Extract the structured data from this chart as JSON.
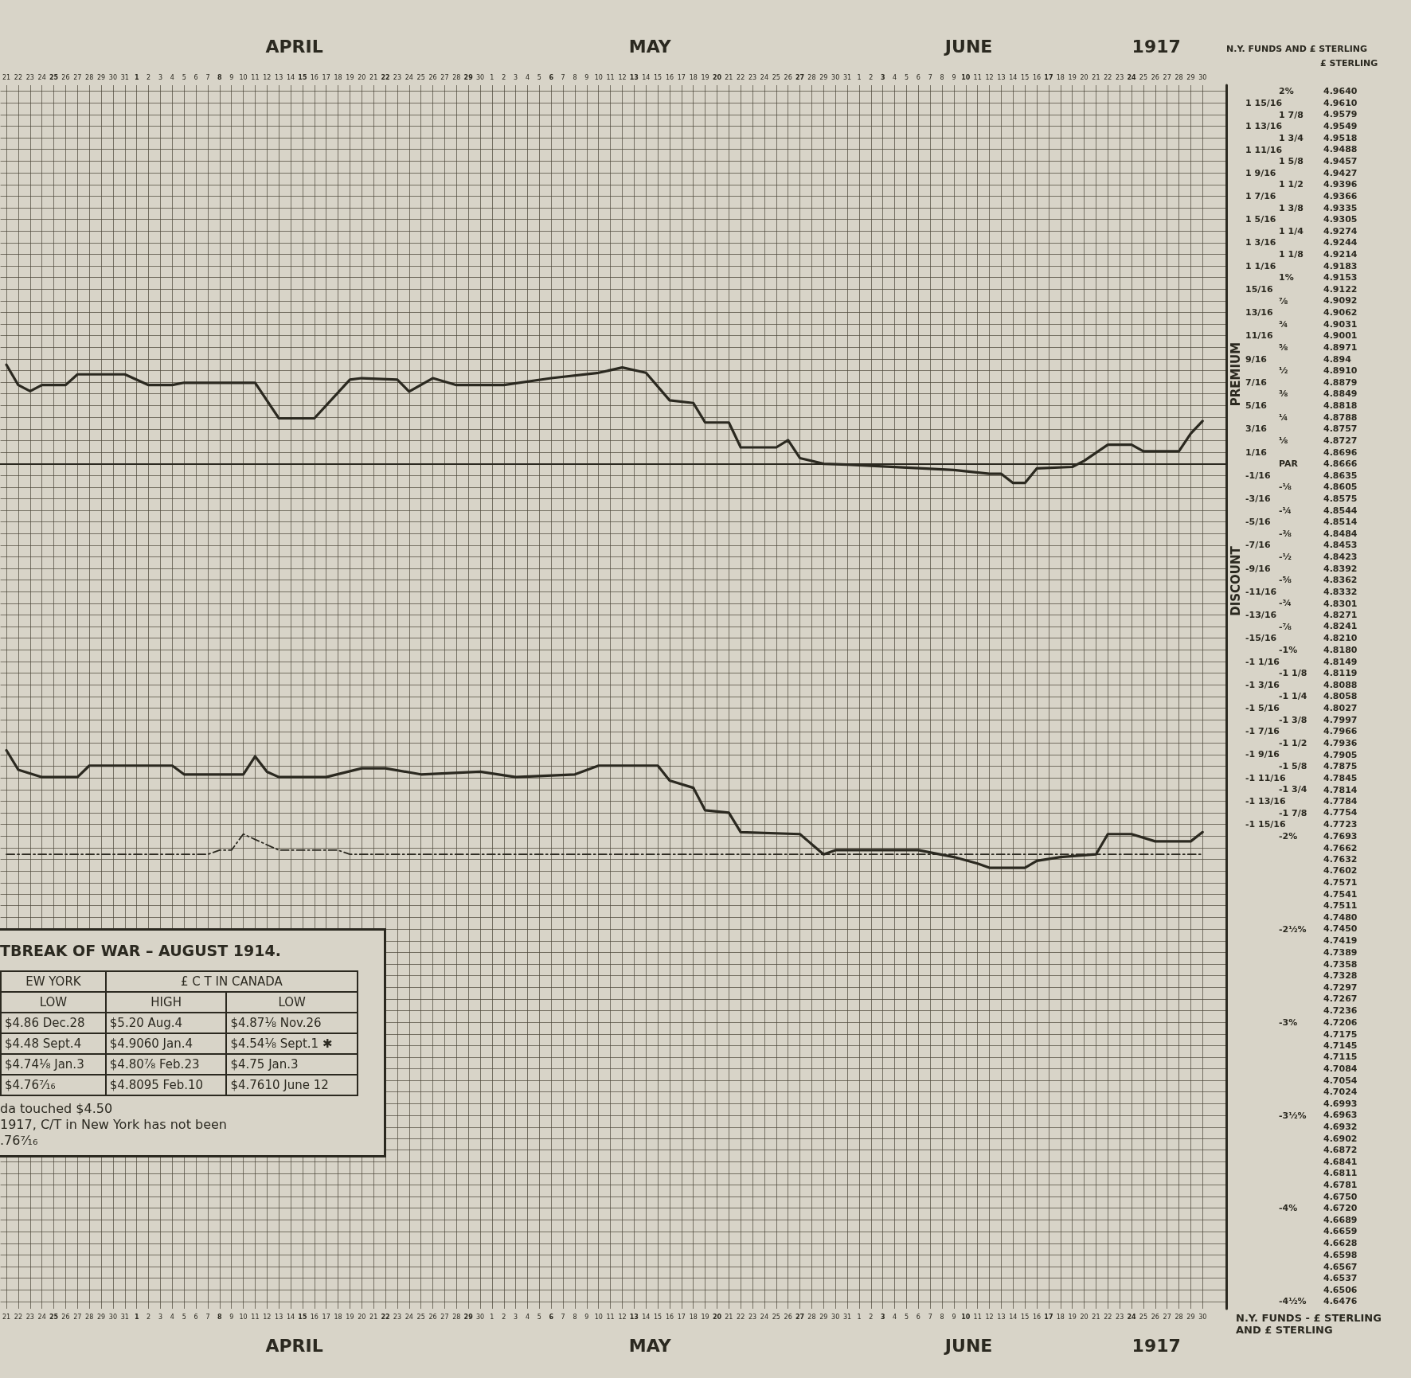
{
  "chart_data": {
    "type": "line",
    "ylabel": "£ STERLING",
    "y2label": "N.Y. FUNDS AND £ STERLING",
    "xlim": [
      "1917-03-20T12:00",
      "1917-07-02"
    ],
    "x2lim": [
      "1917-03-20T12:00",
      "1917-07-02"
    ],
    "ylim": [
      4.6457,
      4.9656
    ],
    "y2lim": [
      -4.539,
      2.034
    ],
    "y3lim": [
      -4.539,
      2.034
    ],
    "grid": true,
    "marker": "none",
    "series": [
      {
        "color": "#2b2920",
        "line_style": "solid",
        "x": [
          "1917-03-21",
          "1917-03-22",
          "1917-03-23",
          "1917-03-24",
          "1917-03-26",
          "1917-03-27",
          "1917-03-31",
          "1917-04-02",
          "1917-04-04",
          "1917-04-05",
          "1917-04-11",
          "1917-04-13",
          "1917-04-16",
          "1917-04-19",
          "1917-04-20",
          "1917-04-23",
          "1917-04-24",
          "1917-04-26",
          "1917-04-28",
          "1917-05-02",
          "1917-05-06",
          "1917-05-10",
          "1917-05-12",
          "1917-05-14",
          "1917-05-16",
          "1917-05-18",
          "1917-05-19",
          "1917-05-21",
          "1917-05-22",
          "1917-05-25",
          "1917-05-26",
          "1917-05-27",
          "1917-05-29",
          "1917-05-31",
          "1917-06-09",
          "1917-06-12",
          "1917-06-13",
          "1917-06-14",
          "1917-06-15",
          "1917-06-16",
          "1917-06-19",
          "1917-06-20",
          "1917-06-22",
          "1917-06-24",
          "1917-06-25",
          "1917-06-28",
          "1917-06-29",
          "1917-06-30"
        ],
        "values": [
          4.8925,
          4.8872,
          4.8856,
          4.8872,
          4.8872,
          4.89,
          4.89,
          4.8872,
          4.8872,
          4.8878,
          4.8878,
          4.8785,
          4.8785,
          4.8886,
          4.889,
          4.8886,
          4.8855,
          4.889,
          4.8872,
          4.8872,
          4.889,
          4.8904,
          4.8918,
          4.8904,
          4.8832,
          4.8825,
          4.8774,
          4.8774,
          4.8709,
          4.8709,
          4.8728,
          4.8681,
          4.8666,
          4.8664,
          4.865,
          4.864,
          4.864,
          4.8616,
          4.8616,
          4.8654,
          4.8658,
          4.8674,
          4.8716,
          4.8716,
          4.8699,
          4.8699,
          4.8745,
          4.8778
        ]
      },
      {
        "color": "#2b2920",
        "line_style": "solid",
        "x": [
          "1917-03-21",
          "1917-03-22",
          "1917-03-24",
          "1917-03-27",
          "1917-03-28",
          "1917-04-04",
          "1917-04-05",
          "1917-04-10",
          "1917-04-11",
          "1917-04-12",
          "1917-04-13",
          "1917-04-17",
          "1917-04-20",
          "1917-04-22",
          "1917-04-25",
          "1917-04-30",
          "1917-05-03",
          "1917-05-08",
          "1917-05-10",
          "1917-05-15",
          "1917-05-16",
          "1917-05-18",
          "1917-05-19",
          "1917-05-21",
          "1917-05-22",
          "1917-05-27",
          "1917-05-29",
          "1917-05-30",
          "1917-06-06",
          "1917-06-09",
          "1917-06-11",
          "1917-06-12",
          "1917-06-15",
          "1917-06-16",
          "1917-06-18",
          "1917-06-21",
          "1917-06-22",
          "1917-06-24",
          "1917-06-26",
          "1917-06-29",
          "1917-06-30"
        ],
        "values": [
          4.7917,
          4.7866,
          4.7847,
          4.7847,
          4.7877,
          4.7877,
          4.7854,
          4.7854,
          4.7901,
          4.7861,
          4.7847,
          4.7847,
          4.787,
          4.787,
          4.7854,
          4.7861,
          4.7847,
          4.7854,
          4.7877,
          4.7877,
          4.7838,
          4.7819,
          4.776,
          4.7754,
          4.7703,
          4.7698,
          4.7645,
          4.7656,
          4.7656,
          4.7638,
          4.7621,
          4.761,
          4.761,
          4.7628,
          4.7638,
          4.7645,
          4.7698,
          4.7698,
          4.7679,
          4.7679,
          4.7703
        ]
      },
      {
        "color": "#2b2920",
        "line_style": "dashed",
        "x": [
          "1917-03-21",
          "1917-04-07",
          "1917-04-08",
          "1917-04-09",
          "1917-04-10",
          "1917-04-13",
          "1917-04-18",
          "1917-04-19",
          "1917-06-30"
        ],
        "values": [
          4.7645,
          4.7645,
          4.7656,
          4.7656,
          4.7698,
          4.7656,
          4.7656,
          4.7645,
          4.7645
        ]
      }
    ],
    "yticks": [
      {
        "value": 4.964,
        "label": "4.9640"
      },
      {
        "value": 4.961,
        "label": "4.9610"
      },
      4.9579,
      4.9549,
      4.9518,
      4.9488,
      4.9457,
      4.9427,
      4.9396,
      4.9366,
      4.9335,
      4.9305,
      4.9274,
      4.9244,
      4.9214,
      4.9183,
      4.9153,
      4.9122,
      4.9092,
      4.9062,
      4.9031,
      4.9001,
      4.8971,
      4.894,
      {
        "value": 4.891,
        "label": "4.8910"
      },
      4.8879,
      4.8849,
      4.8818,
      4.8788,
      4.8757,
      4.8727,
      4.8696,
      4.8666,
      4.8635,
      4.8605,
      4.8575,
      4.8544,
      4.8514,
      4.8484,
      4.8453,
      4.8423,
      4.8392,
      4.8362,
      4.8332,
      4.8301,
      4.8271,
      4.8241,
      {
        "value": 4.821,
        "label": "4.8210"
      },
      {
        "value": 4.818,
        "label": "4.8180"
      },
      4.8149,
      4.8119,
      4.8088,
      4.8058,
      4.8027,
      4.7997,
      4.7966,
      4.7936,
      4.7905,
      4.7875,
      4.7845,
      4.7814,
      4.7784,
      4.7754,
      4.7723,
      4.7693,
      4.7662,
      4.7632,
      4.7602,
      4.7571,
      4.7541,
      4.7511,
      {
        "value": 4.748,
        "label": "4.7480"
      },
      {
        "value": 4.745,
        "label": "4.7450"
      },
      4.7419,
      4.7389,
      4.7358,
      4.7328,
      4.7297,
      4.7267,
      4.7236,
      4.7206,
      4.7175,
      4.7145,
      4.7115,
      4.7084,
      4.7054,
      4.7024,
      4.6993,
      4.6963,
      4.6932,
      4.6902,
      4.6872,
      4.6841,
      4.6811,
      4.6781,
      {
        "value": 4.675,
        "label": "4.6750"
      },
      {
        "value": 4.672,
        "label": "4.6720"
      },
      4.6689,
      4.6659,
      4.6628,
      4.6598,
      4.6567,
      4.6537,
      4.6506,
      4.6476
    ],
    "y2ticks": [
      {
        "value": 1.9375,
        "label": "1 15/16"
      },
      {
        "value": 1.8125,
        "label": "1 13/16"
      },
      {
        "value": 1.6875,
        "label": "1 11/16"
      },
      {
        "value": 1.5625,
        "label": "1 9/16"
      },
      {
        "value": 1.4375,
        "label": "1 7/16"
      },
      {
        "value": 1.3125,
        "label": "1 5/16"
      },
      {
        "value": 1.1875,
        "label": "1 3/16"
      },
      {
        "value": 1.0625,
        "label": "1 1/16"
      },
      {
        "value": 0.9375,
        "label": "15/16"
      },
      {
        "value": 0.8125,
        "label": "13/16"
      },
      {
        "value": 0.6875,
        "label": "11/16"
      },
      {
        "value": 0.5625,
        "label": "9/16"
      },
      {
        "value": 0.4375,
        "label": "7/16"
      },
      {
        "value": 0.3125,
        "label": "5/16"
      },
      {
        "value": 0.1875,
        "label": "3/16"
      },
      {
        "value": 0.0625,
        "label": "1/16"
      },
      {
        "value": -0.0625,
        "label": "-1/16"
      },
      {
        "value": -0.1875,
        "label": "-3/16"
      },
      {
        "value": -0.3125,
        "label": "-5/16"
      },
      {
        "value": -0.4375,
        "label": "-7/16"
      },
      {
        "value": -0.5625,
        "label": "-9/16"
      },
      {
        "value": -0.6875,
        "label": "-11/16"
      },
      {
        "value": -0.8125,
        "label": "-13/16"
      },
      {
        "value": -0.9375,
        "label": "-15/16"
      },
      {
        "value": -1.0625,
        "label": "-1 1/16"
      },
      {
        "value": -1.1875,
        "label": "-1 3/16"
      },
      {
        "value": -1.3125,
        "label": "-1 5/16"
      },
      {
        "value": -1.4375,
        "label": "-1 7/16"
      },
      {
        "value": -1.5625,
        "label": "-1 9/16"
      },
      {
        "value": -1.6875,
        "label": "-1 11/16"
      },
      {
        "value": -1.8125,
        "label": "-1 13/16"
      },
      {
        "value": -1.9375,
        "label": "-1 15/16"
      }
    ],
    "y3ticks": [
      {
        "value": 2,
        "label": "2%"
      },
      {
        "value": 1.875,
        "label": "1 7/8"
      },
      {
        "value": 1.75,
        "label": "1 3/4"
      },
      {
        "value": 1.625,
        "label": "1 5/8"
      },
      {
        "value": 1.5,
        "label": "1 1/2"
      },
      {
        "value": 1.375,
        "label": "1 3/8"
      },
      {
        "value": 1.25,
        "label": "1 1/4"
      },
      {
        "value": 1.125,
        "label": "1 1/8"
      },
      {
        "value": 1,
        "label": "1%"
      },
      {
        "value": 0.875,
        "label": "⅞"
      },
      {
        "value": 0.75,
        "label": "¾"
      },
      {
        "value": 0.625,
        "label": "⅝"
      },
      {
        "value": 0.5,
        "label": "½"
      },
      {
        "value": 0.375,
        "label": "⅜"
      },
      {
        "value": 0.25,
        "label": "¼"
      },
      {
        "value": 0.125,
        "label": "⅛"
      },
      {
        "value": 0,
        "label": "PAR"
      },
      {
        "value": -0.125,
        "label": "-⅛"
      },
      {
        "value": -0.25,
        "label": "-¼"
      },
      {
        "value": -0.375,
        "label": "-⅜"
      },
      {
        "value": -0.5,
        "label": "-½"
      },
      {
        "value": -0.625,
        "label": "-⅝"
      },
      {
        "value": -0.75,
        "label": "-¾"
      },
      {
        "value": -0.875,
        "label": "-⅞"
      },
      {
        "value": -1,
        "label": "-1%"
      },
      {
        "value": -1.125,
        "label": "-1 1/8"
      },
      {
        "value": -1.25,
        "label": "-1 1/4"
      },
      {
        "value": -1.375,
        "label": "-1 3/8"
      },
      {
        "value": -1.5,
        "label": "-1 1/2"
      },
      {
        "value": -1.625,
        "label": "-1 5/8"
      },
      {
        "value": -1.75,
        "label": "-1 3/4"
      },
      {
        "value": -1.875,
        "label": "-1 7/8"
      },
      {
        "value": -2,
        "label": "-2%"
      },
      {
        "value": -2.5,
        "label": "-2½%"
      },
      {
        "value": -3,
        "label": "-3%"
      },
      {
        "value": -3.5,
        "label": "-3½%"
      },
      {
        "value": -4,
        "label": "-4%"
      },
      {
        "value": -4.5,
        "label": "-4½%"
      }
    ],
    "xticks": [
      {
        "value": "1917-03-21",
        "label": "21"
      },
      {
        "value": "1917-03-22",
        "label": "22"
      },
      {
        "value": "1917-03-23",
        "label": "23"
      },
      {
        "value": "1917-03-24",
        "label": "24"
      },
      {
        "value": "1917-03-25",
        "label": "25"
      },
      {
        "value": "1917-03-26",
        "label": "26"
      },
      {
        "value": "1917-03-27",
        "label": "27"
      },
      {
        "value": "1917-03-28",
        "label": "28"
      },
      {
        "value": "1917-03-29",
        "label": "29"
      },
      {
        "value": "1917-03-30",
        "label": "30"
      },
      {
        "value": "1917-03-31",
        "label": "31"
      },
      {
        "value": "1917-04-01",
        "label": "1"
      },
      {
        "value": "1917-04-02",
        "label": "2"
      },
      {
        "value": "1917-04-03",
        "label": "3"
      },
      {
        "value": "1917-04-04",
        "label": "4"
      },
      {
        "value": "1917-04-05",
        "label": "5"
      },
      {
        "value": "1917-04-06",
        "label": "6"
      },
      {
        "value": "1917-04-07",
        "label": "7"
      },
      {
        "value": "1917-04-08",
        "label": "8"
      },
      {
        "value": "1917-04-09",
        "label": "9"
      },
      {
        "value": "1917-04-10",
        "label": "10"
      },
      {
        "value": "1917-04-11",
        "label": "11"
      },
      {
        "value": "1917-04-12",
        "label": "12"
      },
      {
        "value": "1917-04-13",
        "label": "13"
      },
      {
        "value": "1917-04-14",
        "label": "14"
      },
      {
        "value": "1917-04-15",
        "label": "15"
      },
      {
        "value": "1917-04-16",
        "label": "16"
      },
      {
        "value": "1917-04-17",
        "label": "17"
      },
      {
        "value": "1917-04-18",
        "label": "18"
      },
      {
        "value": "1917-04-19",
        "label": "19"
      },
      {
        "value": "1917-04-20",
        "label": "20"
      },
      {
        "value": "1917-04-21",
        "label": "21"
      },
      {
        "value": "1917-04-22",
        "label": "22"
      },
      {
        "value": "1917-04-23",
        "label": "23"
      },
      {
        "value": "1917-04-24",
        "label": "24"
      },
      {
        "value": "1917-04-25",
        "label": "25"
      },
      {
        "value": "1917-04-26",
        "label": "26"
      },
      {
        "value": "1917-04-27",
        "label": "27"
      },
      {
        "value": "1917-04-28",
        "label": "28"
      },
      {
        "value": "1917-04-29",
        "label": "29"
      },
      {
        "value": "1917-04-30",
        "label": "30"
      },
      {
        "value": "1917-05-01",
        "label": "1"
      },
      {
        "value": "1917-05-02",
        "label": "2"
      },
      {
        "value": "1917-05-03",
        "label": "3"
      },
      {
        "value": "1917-05-04",
        "label": "4"
      },
      {
        "value": "1917-05-05",
        "label": "5"
      },
      {
        "value": "1917-05-06",
        "label": "6"
      },
      {
        "value": "1917-05-07",
        "label": "7"
      },
      {
        "value": "1917-05-08",
        "label": "8"
      },
      {
        "value": "1917-05-09",
        "label": "9"
      },
      {
        "value": "1917-05-10",
        "label": "10"
      },
      {
        "value": "1917-05-11",
        "label": "11"
      },
      {
        "value": "1917-05-12",
        "label": "12"
      },
      {
        "value": "1917-05-13",
        "label": "13"
      },
      {
        "value": "1917-05-14",
        "label": "14"
      },
      {
        "value": "1917-05-15",
        "label": "15"
      },
      {
        "value": "1917-05-16",
        "label": "16"
      },
      {
        "value": "1917-05-17",
        "label": "17"
      },
      {
        "value": "1917-05-18",
        "label": "18"
      },
      {
        "value": "1917-05-19",
        "label": "19"
      },
      {
        "value": "1917-05-20",
        "label": "20"
      },
      {
        "value": "1917-05-21",
        "label": "21"
      },
      {
        "value": "1917-05-22",
        "label": "22"
      },
      {
        "value": "1917-05-23",
        "label": "23"
      },
      {
        "value": "1917-05-24",
        "label": "24"
      },
      {
        "value": "1917-05-25",
        "label": "25"
      },
      {
        "value": "1917-05-26",
        "label": "26"
      },
      {
        "value": "1917-05-27",
        "label": "27"
      },
      {
        "value": "1917-05-28",
        "label": "28"
      },
      {
        "value": "1917-05-29",
        "label": "29"
      },
      {
        "value": "1917-05-30",
        "label": "30"
      },
      {
        "value": "1917-05-31",
        "label": "31"
      },
      {
        "value": "1917-06-01",
        "label": "1"
      },
      {
        "value": "1917-06-02",
        "label": "2"
      },
      {
        "value": "1917-06-03",
        "label": "3"
      },
      {
        "value": "1917-06-04",
        "label": "4"
      },
      {
        "value": "1917-06-05",
        "label": "5"
      },
      {
        "value": "1917-06-06",
        "label": "6"
      },
      {
        "value": "1917-06-07",
        "label": "7"
      },
      {
        "value": "1917-06-08",
        "label": "8"
      },
      {
        "value": "1917-06-09",
        "label": "9"
      },
      {
        "value": "1917-06-10",
        "label": "10"
      },
      {
        "value": "1917-06-11",
        "label": "11"
      },
      {
        "value": "1917-06-12",
        "label": "12"
      },
      {
        "value": "1917-06-13",
        "label": "13"
      },
      {
        "value": "1917-06-14",
        "label": "14"
      },
      {
        "value": "1917-06-15",
        "label": "15"
      },
      {
        "value": "1917-06-16",
        "label": "16"
      },
      {
        "value": "1917-06-17",
        "label": "17"
      },
      {
        "value": "1917-06-18",
        "label": "18"
      },
      {
        "value": "1917-06-19",
        "label": "19"
      },
      {
        "value": "1917-06-20",
        "label": "20"
      },
      {
        "value": "1917-06-21",
        "label": "21"
      },
      {
        "value": "1917-06-22",
        "label": "22"
      },
      {
        "value": "1917-06-23",
        "label": "23"
      },
      {
        "value": "1917-06-24",
        "label": "24"
      },
      {
        "value": "1917-06-25",
        "label": "25"
      },
      {
        "value": "1917-06-26",
        "label": "26"
      },
      {
        "value": "1917-06-27",
        "label": "27"
      },
      {
        "value": "1917-06-28",
        "label": "28"
      },
      {
        "value": "1917-06-29",
        "label": "29"
      },
      {
        "value": "1917-06-30",
        "label": "30"
      }
    ],
    "x2ticks": [
      {
        "value": "1917-03-21",
        "label": "21"
      },
      {
        "value": "1917-03-22",
        "label": "22"
      },
      {
        "value": "1917-03-23",
        "label": "23"
      },
      {
        "value": "1917-03-24",
        "label": "24"
      },
      {
        "value": "1917-03-25",
        "label": "25"
      },
      {
        "value": "1917-03-26",
        "label": "26"
      },
      {
        "value": "1917-03-27",
        "label": "27"
      },
      {
        "value": "1917-03-28",
        "label": "28"
      },
      {
        "value": "1917-03-29",
        "label": "29"
      },
      {
        "value": "1917-03-30",
        "label": "30"
      },
      {
        "value": "1917-03-31",
        "label": "31"
      },
      {
        "value": "1917-04-01",
        "label": "1"
      },
      {
        "value": "1917-04-02",
        "label": "2"
      },
      {
        "value": "1917-04-03",
        "label": "3"
      },
      {
        "value": "1917-04-04",
        "label": "4"
      },
      {
        "value": "1917-04-05",
        "label": "5"
      },
      {
        "value": "1917-04-06",
        "label": "6"
      },
      {
        "value": "1917-04-07",
        "label": "7"
      },
      {
        "value": "1917-04-08",
        "label": "8"
      },
      {
        "value": "1917-04-09",
        "label": "9"
      },
      {
        "value": "1917-04-10",
        "label": "10"
      },
      {
        "value": "1917-04-11",
        "label": "11"
      },
      {
        "value": "1917-04-12",
        "label": "12"
      },
      {
        "value": "1917-04-13",
        "label": "13"
      },
      {
        "value": "1917-04-14",
        "label": "14"
      },
      {
        "value": "1917-04-15",
        "label": "15"
      },
      {
        "value": "1917-04-16",
        "label": "16"
      },
      {
        "value": "1917-04-17",
        "label": "17"
      },
      {
        "value": "1917-04-18",
        "label": "18"
      },
      {
        "value": "1917-04-19",
        "label": "19"
      },
      {
        "value": "1917-04-20",
        "label": "20"
      },
      {
        "value": "1917-04-21",
        "label": "21"
      },
      {
        "value": "1917-04-22",
        "label": "22"
      },
      {
        "value": "1917-04-23",
        "label": "23"
      },
      {
        "value": "1917-04-24",
        "label": "24"
      },
      {
        "value": "1917-04-25",
        "label": "25"
      },
      {
        "value": "1917-04-26",
        "label": "26"
      },
      {
        "value": "1917-04-27",
        "label": "27"
      },
      {
        "value": "1917-04-28",
        "label": "28"
      },
      {
        "value": "1917-04-29",
        "label": "29"
      },
      {
        "value": "1917-04-30",
        "label": "30"
      },
      {
        "value": "1917-05-01",
        "label": "1"
      },
      {
        "value": "1917-05-02",
        "label": "2"
      },
      {
        "value": "1917-05-03",
        "label": "3"
      },
      {
        "value": "1917-05-04",
        "label": "4"
      },
      {
        "value": "1917-05-05",
        "label": "5"
      },
      {
        "value": "1917-05-06",
        "label": "6"
      },
      {
        "value": "1917-05-07",
        "label": "7"
      },
      {
        "value": "1917-05-08",
        "label": "8"
      },
      {
        "value": "1917-05-09",
        "label": "9"
      },
      {
        "value": "1917-05-10",
        "label": "10"
      },
      {
        "value": "1917-05-11",
        "label": "11"
      },
      {
        "value": "1917-05-12",
        "label": "12"
      },
      {
        "value": "1917-05-13",
        "label": "13"
      },
      {
        "value": "1917-05-14",
        "label": "14"
      },
      {
        "value": "1917-05-15",
        "label": "15"
      },
      {
        "value": "1917-05-16",
        "label": "16"
      },
      {
        "value": "1917-05-17",
        "label": "17"
      },
      {
        "value": "1917-05-18",
        "label": "18"
      },
      {
        "value": "1917-05-19",
        "label": "19"
      },
      {
        "value": "1917-05-20",
        "label": "20"
      },
      {
        "value": "1917-05-21",
        "label": "21"
      },
      {
        "value": "1917-05-22",
        "label": "22"
      },
      {
        "value": "1917-05-23",
        "label": "23"
      },
      {
        "value": "1917-05-24",
        "label": "24"
      },
      {
        "value": "1917-05-25",
        "label": "25"
      },
      {
        "value": "1917-05-26",
        "label": "26"
      },
      {
        "value": "1917-05-27",
        "label": "27"
      },
      {
        "value": "1917-05-28",
        "label": "28"
      },
      {
        "value": "1917-05-29",
        "label": "29"
      },
      {
        "value": "1917-05-30",
        "label": "30"
      },
      {
        "value": "1917-05-31",
        "label": "31"
      },
      {
        "value": "1917-06-01",
        "label": "1"
      },
      {
        "value": "1917-06-02",
        "label": "2"
      },
      {
        "value": "1917-06-03",
        "label": "3"
      },
      {
        "value": "1917-06-04",
        "label": "4"
      },
      {
        "value": "1917-06-05",
        "label": "5"
      },
      {
        "value": "1917-06-06",
        "label": "6"
      },
      {
        "value": "1917-06-07",
        "label": "7"
      },
      {
        "value": "1917-06-08",
        "label": "8"
      },
      {
        "value": "1917-06-09",
        "label": "9"
      },
      {
        "value": "1917-06-10",
        "label": "10"
      },
      {
        "value": "1917-06-11",
        "label": "11"
      },
      {
        "value": "1917-06-12",
        "label": "12"
      },
      {
        "value": "1917-06-13",
        "label": "13"
      },
      {
        "value": "1917-06-14",
        "label": "14"
      },
      {
        "value": "1917-06-15",
        "label": "15"
      },
      {
        "value": "1917-06-16",
        "label": "16"
      },
      {
        "value": "1917-06-17",
        "label": "17"
      },
      {
        "value": "1917-06-18",
        "label": "18"
      },
      {
        "value": "1917-06-19",
        "label": "19"
      },
      {
        "value": "1917-06-20",
        "label": "20"
      },
      {
        "value": "1917-06-21",
        "label": "21"
      },
      {
        "value": "1917-06-22",
        "label": "22"
      },
      {
        "value": "1917-06-23",
        "label": "23"
      },
      {
        "value": "1917-06-24",
        "label": "24"
      },
      {
        "value": "1917-06-25",
        "label": "25"
      },
      {
        "value": "1917-06-26",
        "label": "26"
      },
      {
        "value": "1917-06-27",
        "label": "27"
      },
      {
        "value": "1917-06-28",
        "label": "28"
      },
      {
        "value": "1917-06-29",
        "label": "29"
      },
      {
        "value": "1917-06-30",
        "label": "30"
      }
    ],
    "annotations": [
      "APRIL",
      "MAY",
      "JUNE",
      "1917",
      "PREMIUM",
      "DISCOUNT",
      "TBREAK OF WAR – AUGUST 1914.",
      "EW YORK",
      "£ C T IN CANADA",
      "LOW",
      "HIGH",
      "LOW",
      "$4.86 Dec.28",
      "$5.20 Aug.4",
      "$4.87⅛ Nov.26",
      "$4.48 Sept.4",
      "$4.9060 Jan.4",
      "$4.54⅛ Sept.1 ✱",
      "$4.74⅛ Jan.3",
      "$4.80⅞ Feb.23",
      "$4.75 Jan.3",
      "$4.76⁷⁄₁₆",
      "$4.8095 Feb.10",
      "$4.7610 June 12",
      "da touched $4.50",
      "1917, C/T in New York has not been",
      ".76⁷⁄₁₆",
      "N.Y. FUNDS - £ STERLING AND £ STERLING"
    ]
  }
}
